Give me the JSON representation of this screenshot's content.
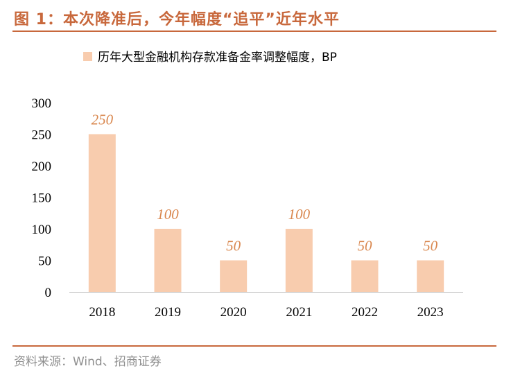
{
  "title": "图 1：本次降准后，今年幅度“追平”近年水平",
  "source": "资料来源：Wind、招商证券",
  "colors": {
    "accent": "#C8683C",
    "bar": "#F8CCAE",
    "label": "#D9874E",
    "axis": "#000000"
  },
  "chart_data": {
    "type": "bar",
    "categories": [
      "2018",
      "2019",
      "2020",
      "2021",
      "2022",
      "2023"
    ],
    "series": [
      {
        "name": "历年大型金融机构存款准备金率调整幅度，BP",
        "values": [
          250,
          100,
          50,
          100,
          50,
          50
        ]
      }
    ],
    "data_labels": [
      "250",
      "100",
      "50",
      "100",
      "50",
      "50"
    ],
    "ylim": [
      0,
      300
    ],
    "yticks": [
      "0",
      "50",
      "100",
      "150",
      "200",
      "250",
      "300"
    ],
    "xlabel": "",
    "ylabel": "",
    "grid": false,
    "legend_position": "top-center"
  }
}
